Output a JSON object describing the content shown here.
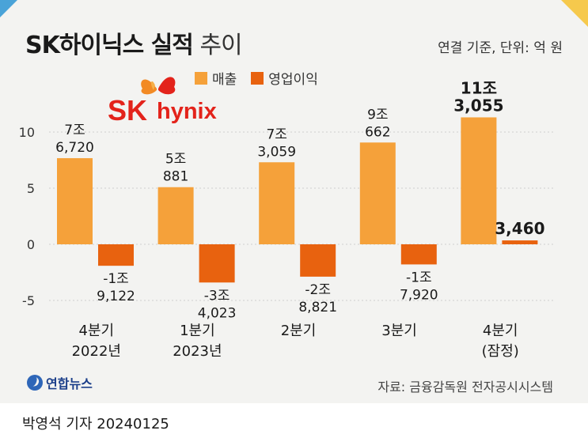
{
  "title_bold": "SK하이닉스 실적",
  "title_light": "추이",
  "unit_note": "연결 기준, 단위: 억 원",
  "legend": [
    {
      "label": "매출",
      "color": "#f5a13a"
    },
    {
      "label": "영업이익",
      "color": "#e8620f"
    }
  ],
  "logo": {
    "letters": "SK",
    "word": "hynix",
    "color": "#e3231b"
  },
  "source": "자료: 금융감독원 전자공시시스템",
  "agency": "연합뉴스",
  "byline": "박영석 기자  20240125",
  "chart_data": {
    "type": "bar",
    "categories": [
      {
        "line1": "4분기",
        "line2": "2022년"
      },
      {
        "line1": "1분기",
        "line2": "2023년"
      },
      {
        "line1": "2분기",
        "line2": ""
      },
      {
        "line1": "3분기",
        "line2": ""
      },
      {
        "line1": "4분기",
        "line2": "(잠정)"
      }
    ],
    "series": [
      {
        "name": "매출",
        "color": "#f5a13a",
        "values": [
          7.672,
          5.0881,
          7.3059,
          9.0662,
          11.3055
        ],
        "labels": [
          [
            "7조",
            "6,720"
          ],
          [
            "5조",
            "881"
          ],
          [
            "7조",
            "3,059"
          ],
          [
            "9조",
            "662"
          ],
          [
            "11조",
            "3,055"
          ]
        ]
      },
      {
        "name": "영업이익",
        "color": "#e8620f",
        "values": [
          -1.9122,
          -3.4023,
          -2.8821,
          -1.792,
          0.346
        ],
        "labels": [
          [
            "-1조",
            "9,122"
          ],
          [
            "-3조",
            "4,023"
          ],
          [
            "-2조",
            "8,821"
          ],
          [
            "-1조",
            "7,920"
          ],
          [
            "3,460"
          ]
        ]
      }
    ],
    "yticks": [
      10,
      5,
      0,
      -5
    ],
    "ylim": [
      -5.6,
      12
    ],
    "grid": true,
    "legend_position": "top"
  }
}
